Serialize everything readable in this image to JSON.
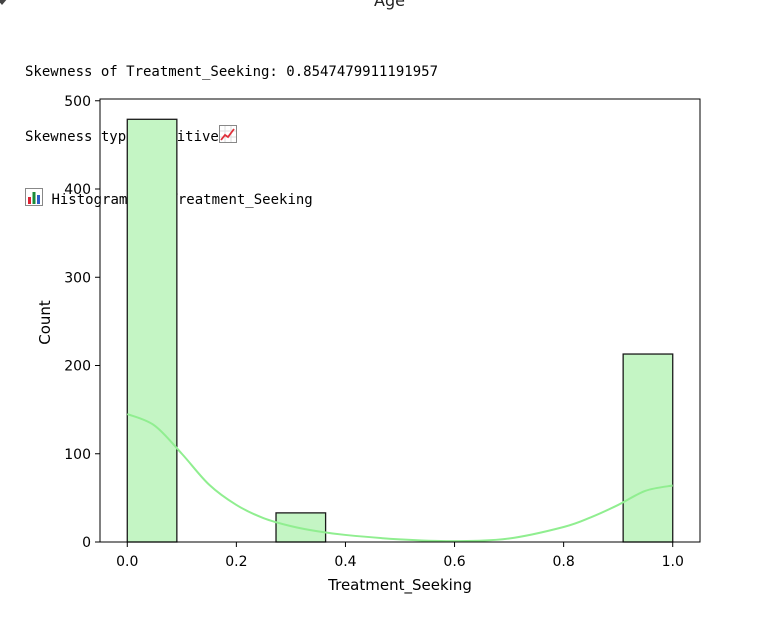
{
  "cell": {
    "previous_figure_title": "Age",
    "output_lines": [
      "Skewness of Treatment_Seeking: 0.8547479911191957",
      "Skewness type: Positive",
      "Histogram for Treatment_Seeking"
    ],
    "icons": {
      "line1_suffix": "chart-increasing-icon",
      "line2_prefix": "bar-chart-icon"
    }
  },
  "chart_data": {
    "type": "bar",
    "bins": [
      {
        "x0": 0.0,
        "x1": 0.0909,
        "count": 479
      },
      {
        "x0": 0.2727,
        "x1": 0.3636,
        "count": 33
      },
      {
        "x0": 0.9091,
        "x1": 1.0,
        "count": 213
      }
    ],
    "kde": {
      "x": [
        0.0,
        0.05,
        0.1,
        0.15,
        0.2,
        0.25,
        0.3,
        0.35,
        0.4,
        0.5,
        0.6,
        0.7,
        0.8,
        0.85,
        0.9,
        0.95,
        1.0
      ],
      "y": [
        145,
        132,
        100,
        65,
        42,
        27,
        18,
        12,
        8,
        3,
        1,
        4,
        17,
        28,
        42,
        58,
        64
      ]
    },
    "xlabel": "Treatment_Seeking",
    "ylabel": "Count",
    "xlim": [
      -0.05,
      1.05
    ],
    "ylim": [
      0,
      502
    ],
    "xticks": [
      0.0,
      0.2,
      0.4,
      0.6,
      0.8,
      1.0
    ],
    "xtick_labels": [
      "0.0",
      "0.2",
      "0.4",
      "0.6",
      "0.8",
      "1.0"
    ],
    "yticks": [
      0,
      100,
      200,
      300,
      400,
      500
    ],
    "ytick_labels": [
      "0",
      "100",
      "200",
      "300",
      "400",
      "500"
    ],
    "colors": {
      "bar_fill": "#c4f5c4",
      "bar_edge": "#1a1a1a",
      "kde_line": "#90ee90",
      "axis": "#000000"
    },
    "grid": false,
    "legend": "none"
  }
}
